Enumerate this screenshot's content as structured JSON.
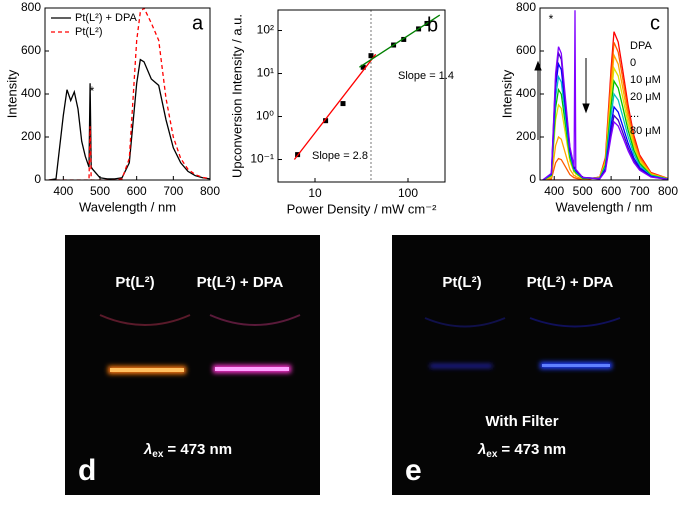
{
  "chart_data": [
    {
      "type": "line",
      "panel_label": "a",
      "xlabel": "Wavelength / nm",
      "ylabel": "Intensity",
      "annotation": "*",
      "xlim": [
        350,
        800
      ],
      "ylim": [
        0,
        800
      ],
      "xticks": [
        400,
        500,
        600,
        700,
        800
      ],
      "yticks": [
        0,
        200,
        400,
        600,
        800
      ],
      "x": [
        360,
        380,
        400,
        410,
        420,
        430,
        440,
        450,
        460,
        470,
        473,
        476,
        480,
        500,
        520,
        540,
        560,
        580,
        600,
        610,
        620,
        640,
        660,
        680,
        700,
        720,
        740,
        760,
        780,
        800
      ],
      "series": [
        {
          "name": "Pt(L²) + DPA",
          "color": "#000000",
          "dash": false,
          "values": [
            0,
            5,
            300,
            420,
            370,
            410,
            330,
            180,
            110,
            60,
            450,
            60,
            50,
            10,
            5,
            5,
            10,
            80,
            450,
            560,
            550,
            470,
            440,
            280,
            150,
            80,
            40,
            20,
            10,
            5
          ]
        },
        {
          "name": "Pt(L²)",
          "color": "#ff0000",
          "dash": true,
          "values": [
            0,
            0,
            0,
            0,
            0,
            0,
            0,
            0,
            0,
            0,
            250,
            0,
            0,
            0,
            0,
            0,
            5,
            100,
            650,
            780,
            800,
            730,
            650,
            380,
            200,
            100,
            50,
            25,
            12,
            6
          ]
        }
      ]
    },
    {
      "type": "scatter",
      "panel_label": "b",
      "xlabel": "Power Density / mW cm⁻²",
      "ylabel": "Upconversion Intensity / a.u.",
      "annotations": [
        "Slope = 2.8",
        "Slope = 1.4"
      ],
      "xscale": "log",
      "yscale": "log",
      "xlim": [
        4,
        250
      ],
      "ylim": [
        0.03,
        300
      ],
      "xticks": [
        10,
        100
      ],
      "yticks": [
        {
          "value": 0.1,
          "label": "10⁻¹"
        },
        {
          "value": 1,
          "label": "10⁰"
        },
        {
          "value": 10,
          "label": "10¹"
        },
        {
          "value": 100,
          "label": "10²"
        }
      ],
      "vline": 40,
      "series": [
        {
          "color": "#000000",
          "x": [
            6.5,
            13,
            20,
            33,
            40,
            70,
            90,
            130,
            160
          ],
          "values": [
            0.13,
            0.8,
            2,
            14,
            26,
            46,
            62,
            109,
            146
          ]
        },
        {
          "color": "#ff0000",
          "line": true,
          "x": [
            6,
            45
          ],
          "values": [
            0.1,
            28
          ]
        },
        {
          "color": "#008000",
          "line": true,
          "x": [
            30,
            220
          ],
          "values": [
            14,
            228
          ]
        }
      ]
    },
    {
      "type": "line",
      "panel_label": "c",
      "xlabel": "Wavelength / nm",
      "ylabel": "Intensity",
      "annotation": "*",
      "legend_labels": [
        "DPA",
        "0",
        "10 μM",
        "20 μM",
        "...",
        "80 μM"
      ],
      "xlim": [
        350,
        800
      ],
      "ylim": [
        0,
        800
      ],
      "xticks": [
        400,
        500,
        600,
        700,
        800
      ],
      "yticks": [
        0,
        200,
        400,
        600,
        800
      ],
      "x": [
        360,
        390,
        405,
        415,
        425,
        440,
        455,
        470,
        473,
        476,
        500,
        560,
        580,
        600,
        610,
        625,
        640,
        660,
        680,
        700,
        740,
        800
      ],
      "series": [
        {
          "color": "#ff0000",
          "values": [
            0,
            0,
            0,
            0,
            0,
            0,
            0,
            0,
            0,
            0,
            0,
            14,
            104,
            518,
            690,
            642,
            518,
            345,
            207,
            117,
            35,
            7
          ]
        },
        {
          "color": "#ff5a00",
          "values": [
            0,
            5,
            80,
            100,
            95,
            60,
            25,
            10,
            10,
            8,
            2,
            13,
            96,
            480,
            640,
            595,
            480,
            320,
            192,
            109,
            32,
            6
          ]
        },
        {
          "color": "#ffa500",
          "values": [
            0,
            10,
            160,
            200,
            190,
            120,
            50,
            20,
            20,
            16,
            4,
            12,
            87,
            435,
            580,
            539,
            435,
            290,
            174,
            99,
            29,
            6
          ]
        },
        {
          "color": "#e0e000",
          "values": [
            0,
            18,
            280,
            350,
            333,
            210,
            88,
            35,
            35,
            28,
            7,
            10,
            78,
            390,
            520,
            484,
            390,
            260,
            156,
            88,
            26,
            5
          ]
        },
        {
          "color": "#00c000",
          "values": [
            0,
            21,
            336,
            420,
            399,
            252,
            105,
            42,
            42,
            34,
            8,
            9,
            69,
            345,
            460,
            428,
            345,
            230,
            138,
            78,
            23,
            5
          ]
        },
        {
          "color": "#00c0c0",
          "values": [
            0,
            24,
            384,
            480,
            456,
            288,
            120,
            48,
            48,
            38,
            10,
            8,
            60,
            300,
            400,
            372,
            300,
            200,
            120,
            68,
            20,
            4
          ]
        },
        {
          "color": "#0000ff",
          "values": [
            0,
            27,
            432,
            540,
            513,
            324,
            135,
            54,
            54,
            43,
            11,
            7,
            51,
            255,
            340,
            316,
            255,
            170,
            102,
            58,
            17,
            3
          ]
        },
        {
          "color": "#4000c0",
          "values": [
            0,
            30,
            472,
            590,
            561,
            354,
            148,
            59,
            59,
            47,
            12,
            6,
            45,
            225,
            300,
            279,
            225,
            150,
            90,
            51,
            15,
            3
          ]
        },
        {
          "color": "#8000ff",
          "values": [
            0,
            31,
            496,
            620,
            589,
            372,
            155,
            62,
            790,
            50,
            12,
            5,
            41,
            203,
            270,
            251,
            203,
            135,
            81,
            46,
            14,
            3
          ]
        }
      ]
    }
  ],
  "photos": [
    {
      "panel": "d",
      "samples": [
        "Pt(L²)",
        "Pt(L²) + DPA"
      ],
      "lambda": "λ",
      "lambda_sub": "ex",
      "excitation": "= 473 nm"
    },
    {
      "panel": "e",
      "samples": [
        "Pt(L²)",
        "Pt(L²) + DPA"
      ],
      "note": "With Filter",
      "lambda": "λ",
      "lambda_sub": "ex",
      "excitation": "= 473 nm"
    }
  ]
}
